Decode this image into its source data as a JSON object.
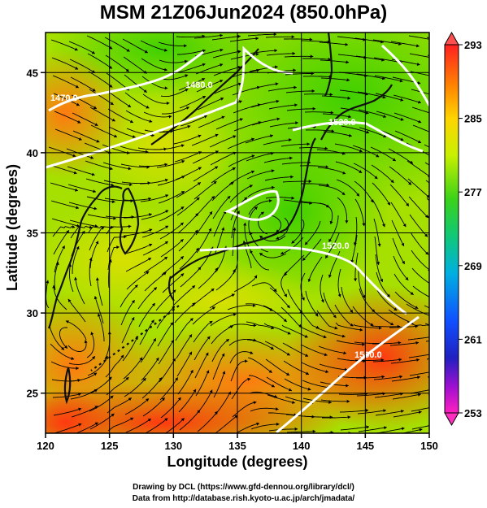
{
  "title": "MSM 21Z06Jun2024 (850.0hPa)",
  "xlabel": "Longitude (degrees)",
  "ylabel": "Latitude  (degrees)",
  "credits": {
    "line1": "Drawing by DCL (https://www.gfd-dennou.org/library/dcl/)",
    "line2": "Data from http://database.rish.kyoto-u.ac.jp/arch/jmadata/"
  },
  "map": {
    "lon_range": [
      120,
      150
    ],
    "lat_range": [
      22.5,
      47.5
    ],
    "lon_ticks": [
      120,
      125,
      130,
      135,
      140,
      145,
      150
    ],
    "lat_ticks": [
      25,
      30,
      35,
      40,
      45
    ],
    "grid": true
  },
  "colorbar": {
    "min": 253,
    "max": 293,
    "ticks": [
      293,
      285,
      277,
      269,
      261,
      253
    ]
  },
  "contour_labels": [
    "1470.0",
    "1480.0",
    "1520.0",
    "1520.0",
    "1500.0"
  ],
  "colors": {
    "land_outline": "#111111",
    "contour": "#ffffff",
    "streamline": "#000000"
  }
}
